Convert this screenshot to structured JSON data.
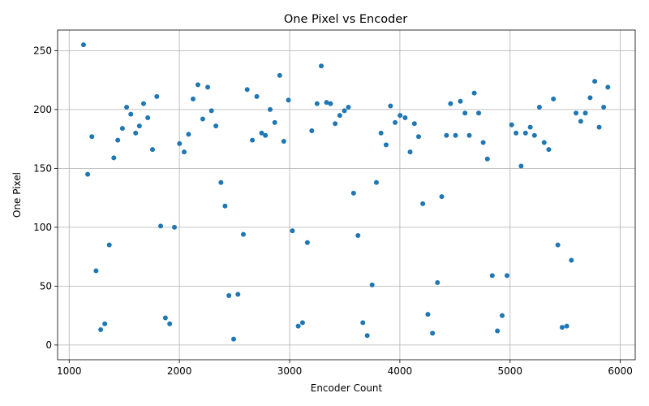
{
  "chart_data": {
    "type": "scatter",
    "title": "One Pixel vs Encoder",
    "xlabel": "Encoder Count",
    "ylabel": "One Pixel",
    "xlim": [
      895,
      6135
    ],
    "ylim": [
      -12.5,
      267.5
    ],
    "xticks": [
      1000,
      2000,
      3000,
      4000,
      5000,
      6000
    ],
    "yticks": [
      0,
      50,
      100,
      150,
      200,
      250
    ],
    "xtick_labels": [
      "1000",
      "2000",
      "3000",
      "4000",
      "5000",
      "6000"
    ],
    "ytick_labels": [
      "0",
      "50",
      "100",
      "150",
      "200",
      "250"
    ],
    "grid": true,
    "marker_color": "#1f77b4",
    "points": [
      [
        1130,
        255
      ],
      [
        1168,
        145
      ],
      [
        1206,
        177
      ],
      [
        1244,
        63
      ],
      [
        1286,
        13
      ],
      [
        1323,
        18
      ],
      [
        1364,
        85
      ],
      [
        1405,
        159
      ],
      [
        1441,
        174
      ],
      [
        1483,
        184
      ],
      [
        1521,
        202
      ],
      [
        1559,
        196
      ],
      [
        1603,
        180
      ],
      [
        1637,
        186
      ],
      [
        1675,
        205
      ],
      [
        1713,
        193
      ],
      [
        1756,
        166
      ],
      [
        1795,
        211
      ],
      [
        1830,
        101
      ],
      [
        1873,
        23
      ],
      [
        1912,
        18
      ],
      [
        1955,
        100
      ],
      [
        2001,
        171
      ],
      [
        2043,
        164
      ],
      [
        2083,
        179
      ],
      [
        2124,
        209
      ],
      [
        2168,
        221
      ],
      [
        2212,
        192
      ],
      [
        2257,
        219
      ],
      [
        2291,
        199
      ],
      [
        2331,
        186
      ],
      [
        2377,
        138
      ],
      [
        2414,
        118
      ],
      [
        2449,
        42
      ],
      [
        2492,
        5
      ],
      [
        2531,
        43
      ],
      [
        2580,
        94
      ],
      [
        2615,
        217
      ],
      [
        2662,
        174
      ],
      [
        2702,
        211
      ],
      [
        2746,
        180
      ],
      [
        2780,
        178
      ],
      [
        2823,
        200
      ],
      [
        2865,
        189
      ],
      [
        2910,
        229
      ],
      [
        2947,
        173
      ],
      [
        2989,
        208
      ],
      [
        3025,
        97
      ],
      [
        3078,
        16
      ],
      [
        3117,
        19
      ],
      [
        3161,
        87
      ],
      [
        3201,
        182
      ],
      [
        3249,
        205
      ],
      [
        3287,
        237
      ],
      [
        3335,
        206
      ],
      [
        3371,
        205
      ],
      [
        3413,
        188
      ],
      [
        3455,
        195
      ],
      [
        3497,
        199
      ],
      [
        3533,
        202
      ],
      [
        3580,
        129
      ],
      [
        3620,
        93
      ],
      [
        3664,
        19
      ],
      [
        3704,
        8
      ],
      [
        3748,
        51
      ],
      [
        3787,
        138
      ],
      [
        3829,
        180
      ],
      [
        3875,
        170
      ],
      [
        3915,
        203
      ],
      [
        3957,
        189
      ],
      [
        4002,
        195
      ],
      [
        4048,
        193
      ],
      [
        4093,
        164
      ],
      [
        4132,
        188
      ],
      [
        4170,
        177
      ],
      [
        4208,
        120
      ],
      [
        4254,
        26
      ],
      [
        4296,
        10
      ],
      [
        4341,
        53
      ],
      [
        4380,
        126
      ],
      [
        4423,
        178
      ],
      [
        4460,
        205
      ],
      [
        4505,
        178
      ],
      [
        4549,
        207
      ],
      [
        4591,
        197
      ],
      [
        4630,
        178
      ],
      [
        4675,
        214
      ],
      [
        4715,
        197
      ],
      [
        4756,
        172
      ],
      [
        4794,
        158
      ],
      [
        4838,
        59
      ],
      [
        4885,
        12
      ],
      [
        4928,
        25
      ],
      [
        4972,
        59
      ],
      [
        5014,
        187
      ],
      [
        5054,
        180
      ],
      [
        5100,
        152
      ],
      [
        5140,
        180
      ],
      [
        5183,
        185
      ],
      [
        5221,
        178
      ],
      [
        5266,
        202
      ],
      [
        5309,
        172
      ],
      [
        5351,
        166
      ],
      [
        5393,
        209
      ],
      [
        5433,
        85
      ],
      [
        5472,
        15
      ],
      [
        5514,
        16
      ],
      [
        5556,
        72
      ],
      [
        5598,
        197
      ],
      [
        5641,
        190
      ],
      [
        5683,
        197
      ],
      [
        5726,
        210
      ],
      [
        5768,
        224
      ],
      [
        5808,
        185
      ],
      [
        5849,
        202
      ],
      [
        5887,
        219
      ]
    ]
  }
}
